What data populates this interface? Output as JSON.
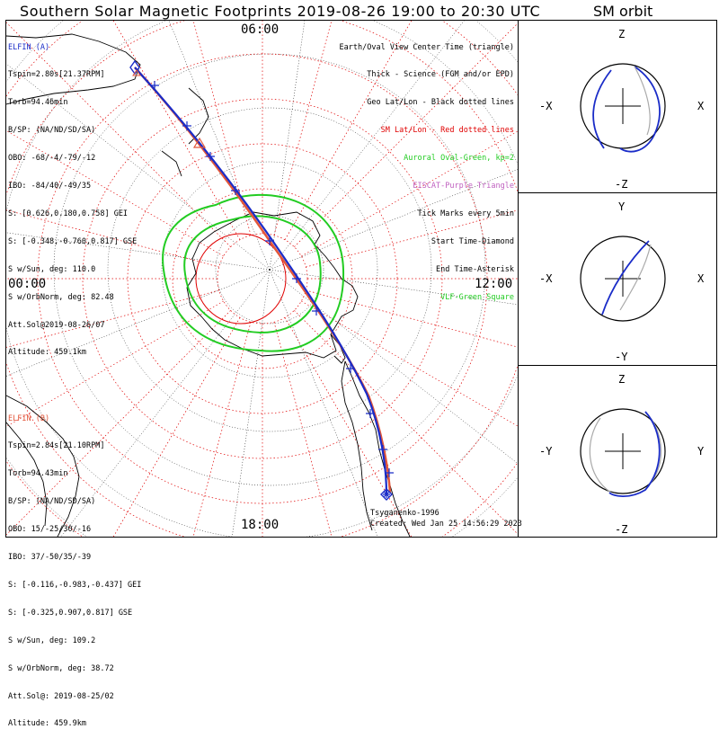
{
  "title": "Southern Solar Magnetic Footprints 2019-08-26 19:00 to 20:30 UTC",
  "sm_orbit_title": "SM orbit",
  "mlt_labels": {
    "top": "06:00",
    "left": "00:00",
    "right": "12:00",
    "bottom": "18:00"
  },
  "elfin_a": {
    "name": "ELFIN (A)",
    "color": "#1a2cc8",
    "lines": [
      "Tspin=2.80s[21.37RPM]",
      "Torb=94.46min",
      "B/SP: (NA/ND/SD/SA)",
      "OBO: -68/-4/-79/-12",
      "IBO: -84/40/-49/35",
      "S: [0.626,0.180,0.758] GEI",
      "S: [-0.348,-0.760,0.817] GSE",
      "S w/Sun, deg: 110.0",
      "S w/OrbNorm, deg: 82.48",
      "Att.Sol@2019-08-26/07",
      "Altitude: 459.1km"
    ]
  },
  "elfin_b": {
    "name": "ELFIN (B)",
    "color": "#e2563a",
    "lines": [
      "Tspin=2.84s[21.10RPM]",
      "Torb=94.43min",
      "B/SP: (NA/ND/SD/SA)",
      "OBO: 15/-25/30/-16",
      "IBO: 37/-50/35/-39",
      "S: [-0.116,-0.983,-0.437] GEI",
      "S: [-0.325,0.907,0.817] GSE",
      "S w/Sun, deg: 109.2",
      "S w/OrbNorm, deg: 38.72",
      "Att.Sol@: 2019-08-25/02",
      "Altitude: 459.9km"
    ]
  },
  "legend": [
    {
      "text": "Earth/Oval View Center Time (triangle)",
      "color": "#000000"
    },
    {
      "text": "Thick - Science (FGM and/or EPD)",
      "color": "#000000"
    },
    {
      "text": "Geo Lat/Lon - Black dotted lines",
      "color": "#000000"
    },
    {
      "text": "SM Lat/Lon - Red dotted lines",
      "color": "#e00000"
    },
    {
      "text": "Auroral Oval-Green, kp=2",
      "color": "#22cc22"
    },
    {
      "text": "EISCAT-Purple Triangle",
      "color": "#c060c0"
    },
    {
      "text": "Tick Marks every 5min",
      "color": "#000000"
    },
    {
      "text": "Start Time-Diamond",
      "color": "#000000"
    },
    {
      "text": "End Time-Asterisk",
      "color": "#000000"
    },
    {
      "text": "VLF-Green Square",
      "color": "#22cc22"
    }
  ],
  "credit_model": "Tsyganenko-1996",
  "credit_created": "Created: Wed Jan 25 14:56:29 2023",
  "orbit_panels": [
    {
      "top": "Z",
      "bottom": "-Z",
      "left": "-X",
      "right": "X"
    },
    {
      "top": "Y",
      "bottom": "-Y",
      "left": "-X",
      "right": "X"
    },
    {
      "top": "Z",
      "bottom": "-Z",
      "left": "-Y",
      "right": "Y"
    }
  ],
  "colors": {
    "red_grid": "#e00000",
    "oval": "#22cc22",
    "track_a": "#1a2cc8",
    "track_b": "#e2563a"
  }
}
